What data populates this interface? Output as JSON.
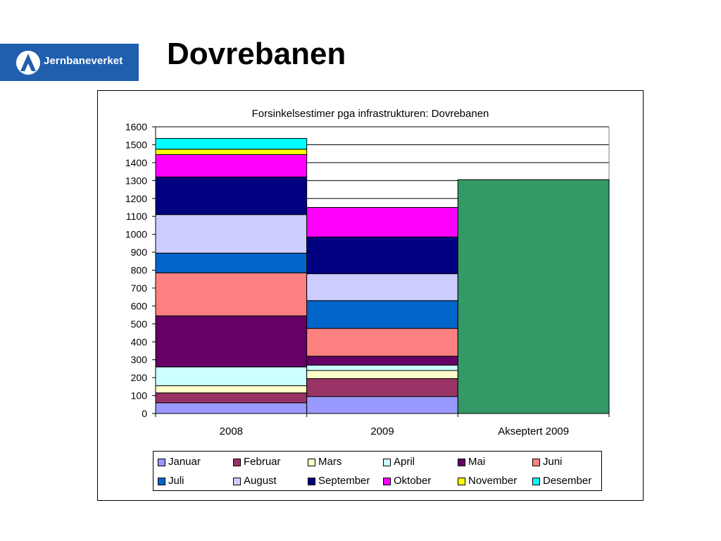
{
  "header": {
    "logo_text": "Jernbaneverket",
    "logo_icon": "jernbaneverket-logo-icon",
    "title": "Dovrebanen"
  },
  "colors": {
    "logo_bg": "#1f5fae",
    "frame": "#000000"
  },
  "chart_data": {
    "type": "bar",
    "stacked": true,
    "title": "Forsinkelsestimer pga infrastrukturen: Dovrebanen",
    "categories": [
      "2008",
      "2009",
      "Akseptert 2009"
    ],
    "ylim": [
      0,
      1600
    ],
    "yticks": [
      0,
      100,
      200,
      300,
      400,
      500,
      600,
      700,
      800,
      900,
      1000,
      1100,
      1200,
      1300,
      1400,
      1500,
      1600
    ],
    "grid": "horizontal",
    "legend_placement": "bottom",
    "series": [
      {
        "name": "Januar",
        "color": "#9999ff",
        "values": [
          60,
          95,
          0
        ]
      },
      {
        "name": "Februar",
        "color": "#993366",
        "values": [
          55,
          100,
          0
        ]
      },
      {
        "name": "Mars",
        "color": "#ffffcc",
        "values": [
          40,
          45,
          0
        ]
      },
      {
        "name": "April",
        "color": "#ccffff",
        "values": [
          105,
          30,
          0
        ]
      },
      {
        "name": "Mai",
        "color": "#660066",
        "values": [
          285,
          50,
          0
        ]
      },
      {
        "name": "Juni",
        "color": "#ff8080",
        "values": [
          240,
          155,
          0
        ]
      },
      {
        "name": "Juli",
        "color": "#0066cc",
        "values": [
          110,
          155,
          0
        ]
      },
      {
        "name": "August",
        "color": "#ccccff",
        "values": [
          215,
          150,
          0
        ]
      },
      {
        "name": "September",
        "color": "#000080",
        "values": [
          210,
          205,
          0
        ]
      },
      {
        "name": "Oktober",
        "color": "#ff00ff",
        "values": [
          125,
          165,
          0
        ]
      },
      {
        "name": "November",
        "color": "#ffff00",
        "values": [
          30,
          0,
          0
        ]
      },
      {
        "name": "Desember",
        "color": "#00ffff",
        "values": [
          60,
          0,
          0
        ]
      }
    ],
    "accepted": {
      "category": "Akseptert 2009",
      "value": 1305,
      "color": "#339966"
    }
  }
}
